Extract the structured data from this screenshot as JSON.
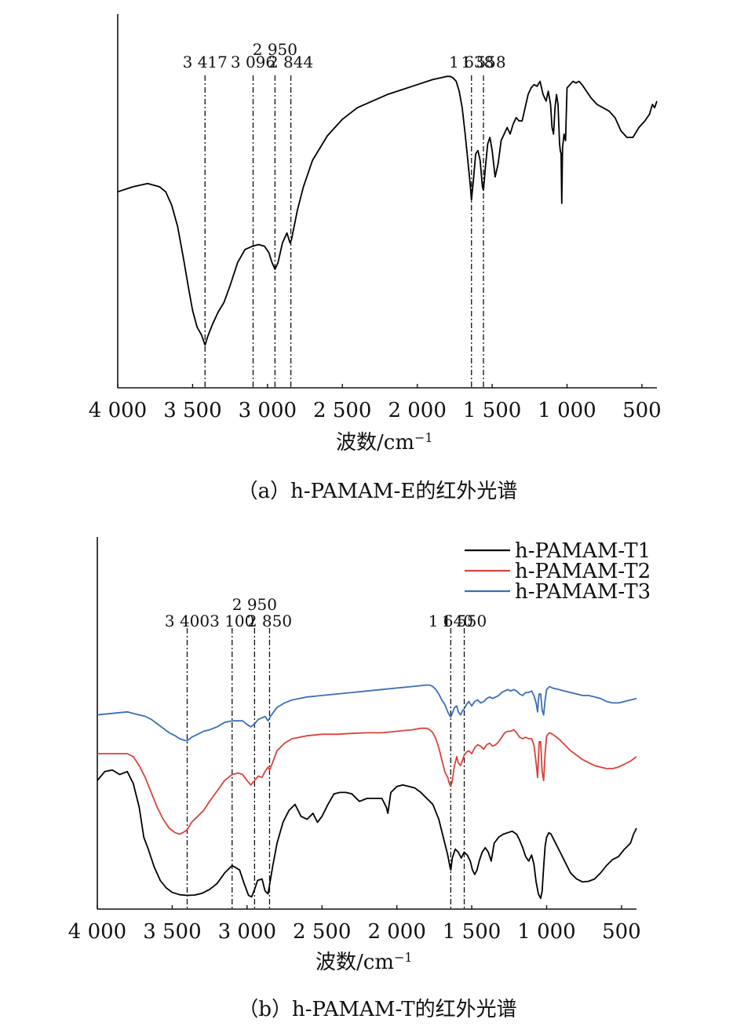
{
  "chart_data": [
    {
      "type": "line",
      "panel": "a",
      "caption": "（a）h-PAMAM-E的红外光谱",
      "xlabel": "波数/cm",
      "xlabel_sup": "−1",
      "x_reversed": true,
      "xlim": [
        4000,
        400
      ],
      "xticks": [
        4000,
        3500,
        3000,
        2500,
        2000,
        1500,
        1000,
        500
      ],
      "xtick_labels": [
        "4 000",
        "3 500",
        "3 000",
        "2 500",
        "2 000",
        "1 500",
        "1 000",
        "500"
      ],
      "y_ticks_shown": false,
      "grid": false,
      "peak_markers": [
        {
          "x": 3417,
          "label": "3 417",
          "tier": 1
        },
        {
          "x": 3096,
          "label": "3 096",
          "tier": 1
        },
        {
          "x": 2950,
          "label": "2 950",
          "tier": 2
        },
        {
          "x": 2844,
          "label": "2 844",
          "tier": 1
        },
        {
          "x": 1638,
          "label": "1 638",
          "tier": 1
        },
        {
          "x": 1558,
          "label": "1 558",
          "tier": 1
        }
      ],
      "series": [
        {
          "color": "#000000",
          "x": [
            4000,
            3900,
            3800,
            3760,
            3720,
            3680,
            3640,
            3600,
            3560,
            3530,
            3500,
            3470,
            3440,
            3417,
            3400,
            3370,
            3330,
            3290,
            3250,
            3200,
            3150,
            3100,
            3060,
            3020,
            2990,
            2970,
            2950,
            2930,
            2900,
            2870,
            2850,
            2840,
            2800,
            2760,
            2700,
            2600,
            2500,
            2400,
            2300,
            2200,
            2100,
            2000,
            1900,
            1850,
            1800,
            1780,
            1760,
            1740,
            1720,
            1700,
            1680,
            1660,
            1645,
            1638,
            1625,
            1610,
            1595,
            1580,
            1565,
            1558,
            1545,
            1530,
            1515,
            1500,
            1480,
            1460,
            1440,
            1420,
            1400,
            1380,
            1360,
            1340,
            1320,
            1300,
            1280,
            1260,
            1240,
            1220,
            1200,
            1180,
            1160,
            1140,
            1125,
            1110,
            1100,
            1090,
            1080,
            1070,
            1060,
            1050,
            1045,
            1040,
            1035,
            1030,
            1020,
            1010,
            1000,
            980,
            960,
            940,
            920,
            900,
            870,
            840,
            800,
            760,
            720,
            680,
            640,
            600,
            560,
            520,
            480,
            450,
            430,
            415,
            400
          ],
          "y": [
            58.5,
            60.0,
            61.0,
            60.5,
            60.0,
            58.5,
            54.5,
            48.0,
            38.0,
            30.0,
            22.5,
            17.5,
            15.0,
            12.0,
            14.5,
            18.0,
            22.0,
            25.0,
            30.0,
            37.0,
            41.0,
            42.0,
            42.5,
            42.0,
            40.0,
            37.0,
            35.0,
            37.0,
            43.0,
            46.0,
            43.0,
            44.0,
            53.0,
            60.0,
            68.0,
            75.5,
            80.5,
            84.0,
            86.0,
            88.0,
            89.5,
            91.0,
            92.5,
            93.0,
            93.5,
            93.5,
            93.0,
            92.0,
            89.0,
            84.0,
            76.0,
            67.0,
            60.0,
            56.0,
            62.0,
            70.0,
            71.0,
            68.0,
            60.0,
            59.0,
            66.0,
            73.0,
            75.0,
            71.0,
            63.0,
            67.0,
            74.0,
            76.0,
            78.0,
            76.0,
            79.0,
            81.0,
            80.0,
            80.0,
            84.0,
            88.0,
            90.0,
            91.0,
            90.5,
            92.0,
            88.0,
            86.0,
            89.0,
            85.0,
            78.0,
            76.0,
            84.0,
            88.0,
            85.0,
            73.0,
            71.0,
            70.0,
            55.0,
            72.0,
            76.0,
            74.0,
            90.0,
            91.0,
            92.0,
            91.5,
            92.0,
            91.0,
            89.0,
            87.0,
            85.0,
            84.0,
            83.0,
            81.0,
            77.0,
            75.0,
            75.0,
            78.0,
            80.0,
            82.0,
            85.0,
            84.0,
            86.0
          ]
        }
      ]
    },
    {
      "type": "line",
      "panel": "b",
      "caption": "（b）h-PAMAM-T的红外光谱",
      "xlabel": "波数/cm",
      "xlabel_sup": "−1",
      "x_reversed": true,
      "xlim": [
        4000,
        400
      ],
      "xticks": [
        4000,
        3500,
        3000,
        2500,
        2000,
        1500,
        1000,
        500
      ],
      "xtick_labels": [
        "4 000",
        "3 500",
        "3 000",
        "2 500",
        "2 000",
        "1 500",
        "1 000",
        "500"
      ],
      "y_ticks_shown": false,
      "grid": false,
      "legend_position": "top-right",
      "peak_markers": [
        {
          "x": 3400,
          "label": "3 400",
          "tier": 1
        },
        {
          "x": 3100,
          "label": "3 100",
          "tier": 1
        },
        {
          "x": 2950,
          "label": "2 950",
          "tier": 2
        },
        {
          "x": 2850,
          "label": "2 850",
          "tier": 1
        },
        {
          "x": 1640,
          "label": "1 640",
          "tier": 1
        },
        {
          "x": 1550,
          "label": "1 550",
          "tier": 1
        }
      ],
      "series": [
        {
          "name": "h-PAMAM-T1",
          "color": "#000000",
          "x": [
            4000,
            3950,
            3900,
            3850,
            3800,
            3760,
            3720,
            3690,
            3660,
            3620,
            3580,
            3540,
            3500,
            3450,
            3400,
            3350,
            3300,
            3250,
            3200,
            3150,
            3100,
            3050,
            3020,
            2990,
            2970,
            2950,
            2930,
            2900,
            2880,
            2860,
            2850,
            2830,
            2800,
            2760,
            2720,
            2680,
            2640,
            2600,
            2560,
            2530,
            2500,
            2460,
            2420,
            2380,
            2340,
            2300,
            2250,
            2200,
            2150,
            2100,
            2070,
            2060,
            2040,
            2000,
            1960,
            1920,
            1880,
            1840,
            1800,
            1760,
            1720,
            1690,
            1660,
            1645,
            1640,
            1630,
            1610,
            1590,
            1570,
            1550,
            1530,
            1510,
            1495,
            1480,
            1465,
            1450,
            1430,
            1410,
            1390,
            1370,
            1350,
            1320,
            1290,
            1260,
            1230,
            1200,
            1180,
            1160,
            1140,
            1120,
            1100,
            1085,
            1070,
            1055,
            1040,
            1030,
            1020,
            1010,
            1000,
            985,
            970,
            950,
            920,
            880,
            840,
            800,
            760,
            720,
            680,
            640,
            600,
            560,
            520,
            480,
            440,
            420,
            400
          ],
          "y": [
            41.0,
            44.0,
            44.5,
            43.0,
            44.0,
            40.0,
            32.0,
            22.0,
            18.0,
            12.0,
            7.5,
            5.0,
            3.5,
            2.7,
            2.5,
            2.6,
            3.2,
            4.5,
            6.5,
            10.0,
            12.5,
            11.0,
            6.5,
            2.5,
            2.0,
            4.5,
            7.5,
            8.0,
            4.0,
            3.0,
            6.0,
            12.0,
            20.0,
            27.0,
            31.0,
            33.0,
            29.0,
            28.0,
            30.0,
            27.0,
            29.0,
            33.0,
            36.5,
            37.0,
            37.0,
            36.5,
            34.0,
            35.0,
            35.0,
            35.0,
            32.0,
            30.0,
            37.0,
            39.0,
            39.5,
            39.0,
            38.5,
            37.0,
            35.0,
            33.0,
            28.0,
            22.0,
            16.0,
            12.0,
            11.0,
            15.0,
            18.0,
            17.0,
            15.0,
            17.0,
            16.0,
            14.0,
            11.0,
            9.5,
            11.0,
            14.0,
            17.0,
            18.5,
            17.0,
            14.0,
            20.0,
            22.0,
            23.0,
            23.5,
            24.0,
            23.0,
            21.0,
            18.5,
            15.5,
            14.0,
            16.0,
            13.0,
            7.0,
            3.0,
            1.5,
            4.0,
            12.0,
            19.0,
            22.0,
            23.5,
            23.0,
            21.0,
            18.0,
            14.0,
            10.0,
            8.0,
            7.0,
            7.2,
            8.0,
            10.0,
            12.5,
            14.5,
            15.5,
            18.0,
            20.0,
            23.0,
            25.0
          ]
        },
        {
          "name": "h-PAMAM-T2",
          "color": "#d9423b",
          "x": [
            4000,
            3900,
            3800,
            3760,
            3720,
            3680,
            3640,
            3600,
            3560,
            3520,
            3480,
            3450,
            3420,
            3400,
            3370,
            3330,
            3290,
            3250,
            3200,
            3150,
            3100,
            3060,
            3030,
            3000,
            2975,
            2950,
            2925,
            2900,
            2880,
            2860,
            2850,
            2830,
            2800,
            2750,
            2700,
            2600,
            2500,
            2400,
            2300,
            2200,
            2100,
            2000,
            1900,
            1840,
            1800,
            1780,
            1760,
            1740,
            1720,
            1700,
            1680,
            1660,
            1650,
            1640,
            1630,
            1615,
            1600,
            1590,
            1575,
            1560,
            1550,
            1535,
            1520,
            1500,
            1480,
            1460,
            1440,
            1420,
            1400,
            1380,
            1360,
            1340,
            1320,
            1300,
            1280,
            1260,
            1240,
            1220,
            1200,
            1180,
            1160,
            1140,
            1120,
            1100,
            1085,
            1070,
            1060,
            1055,
            1050,
            1040,
            1030,
            1020,
            1010,
            1000,
            980,
            960,
            920,
            880,
            840,
            800,
            760,
            720,
            680,
            640,
            600,
            560,
            520,
            480,
            440,
            400
          ],
          "y": [
            50.0,
            50.0,
            50.0,
            49.0,
            46.0,
            42.0,
            37.0,
            32.0,
            28.0,
            25.0,
            23.5,
            23.0,
            23.8,
            24.5,
            27.0,
            29.0,
            31.0,
            34.0,
            37.5,
            41.0,
            43.0,
            43.5,
            43.0,
            41.0,
            39.5,
            41.0,
            42.5,
            42.0,
            44.0,
            45.5,
            44.5,
            47.0,
            51.0,
            53.5,
            55.0,
            56.0,
            56.5,
            56.5,
            56.8,
            57.0,
            57.0,
            57.5,
            58.0,
            58.5,
            58.5,
            58.0,
            57.0,
            55.0,
            52.0,
            48.0,
            44.0,
            42.0,
            40.0,
            39.0,
            41.0,
            46.0,
            49.0,
            47.0,
            46.0,
            48.0,
            49.5,
            50.5,
            51.0,
            50.0,
            52.0,
            53.0,
            52.5,
            51.5,
            53.0,
            53.5,
            52.5,
            53.0,
            54.0,
            55.5,
            57.0,
            57.5,
            57.5,
            58.0,
            57.0,
            55.5,
            55.0,
            55.5,
            55.0,
            55.0,
            53.0,
            47.0,
            42.0,
            48.0,
            54.0,
            54.0,
            44.0,
            41.0,
            50.0,
            56.0,
            57.0,
            56.5,
            55.0,
            53.0,
            51.0,
            49.5,
            48.0,
            47.0,
            46.0,
            45.5,
            45.0,
            45.0,
            45.5,
            46.5,
            47.5,
            49.0
          ]
        },
        {
          "name": "h-PAMAM-T3",
          "color": "#3a6fb7",
          "x": [
            4000,
            3900,
            3800,
            3760,
            3720,
            3680,
            3640,
            3600,
            3560,
            3520,
            3480,
            3450,
            3420,
            3400,
            3370,
            3330,
            3290,
            3250,
            3200,
            3150,
            3100,
            3060,
            3030,
            3000,
            2975,
            2950,
            2925,
            2900,
            2880,
            2860,
            2850,
            2830,
            2800,
            2750,
            2700,
            2600,
            2500,
            2400,
            2300,
            2200,
            2100,
            2000,
            1900,
            1840,
            1800,
            1780,
            1760,
            1740,
            1720,
            1700,
            1680,
            1660,
            1650,
            1640,
            1630,
            1615,
            1600,
            1590,
            1575,
            1560,
            1550,
            1535,
            1520,
            1500,
            1480,
            1460,
            1440,
            1420,
            1400,
            1380,
            1360,
            1340,
            1320,
            1300,
            1280,
            1260,
            1240,
            1220,
            1200,
            1180,
            1160,
            1140,
            1120,
            1100,
            1085,
            1070,
            1060,
            1055,
            1050,
            1040,
            1030,
            1020,
            1010,
            1000,
            980,
            960,
            920,
            880,
            840,
            800,
            760,
            720,
            680,
            640,
            600,
            560,
            520,
            480,
            440,
            400
          ],
          "y": [
            63.0,
            63.5,
            64.0,
            63.5,
            63.0,
            62.5,
            61.5,
            60.0,
            58.5,
            57.0,
            56.0,
            55.0,
            54.5,
            54.3,
            55.5,
            56.5,
            57.5,
            58.0,
            59.0,
            60.5,
            61.0,
            61.0,
            61.0,
            59.8,
            59.0,
            60.0,
            61.5,
            62.0,
            62.5,
            61.0,
            62.0,
            63.5,
            65.5,
            67.0,
            68.0,
            69.0,
            69.5,
            70.0,
            70.5,
            71.0,
            71.5,
            72.0,
            72.5,
            72.8,
            73.0,
            73.0,
            72.5,
            71.5,
            70.0,
            68.0,
            66.5,
            64.0,
            63.0,
            62.3,
            63.5,
            65.5,
            66.0,
            64.0,
            63.0,
            64.5,
            65.0,
            66.5,
            67.5,
            66.0,
            67.5,
            68.0,
            67.0,
            67.5,
            68.5,
            69.0,
            68.5,
            69.0,
            69.5,
            70.5,
            71.0,
            71.5,
            71.0,
            71.5,
            71.0,
            70.0,
            69.5,
            70.5,
            70.5,
            71.0,
            69.5,
            67.0,
            64.0,
            68.0,
            70.0,
            70.0,
            64.5,
            63.0,
            68.0,
            71.5,
            72.5,
            72.0,
            71.5,
            71.0,
            70.5,
            70.0,
            69.5,
            69.5,
            69.0,
            68.5,
            67.5,
            67.0,
            67.0,
            67.5,
            68.0,
            68.5
          ]
        }
      ]
    }
  ]
}
